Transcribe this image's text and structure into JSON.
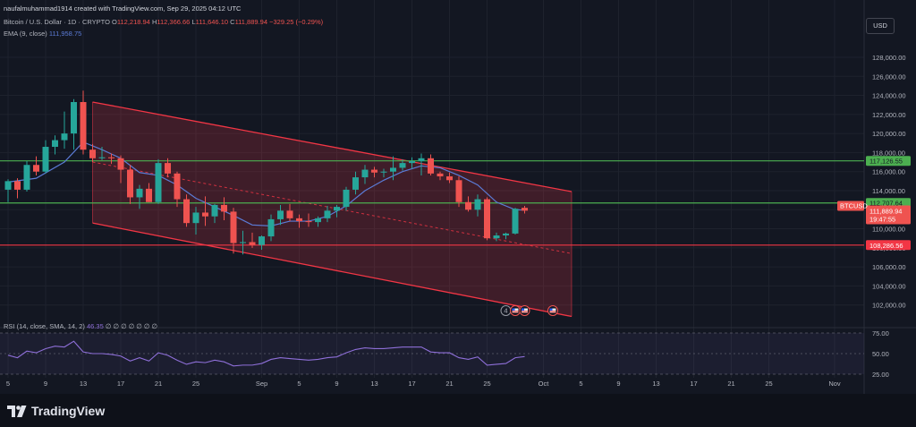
{
  "header": {
    "attribution": "naufalmuhammad1914 created with TradingView.com, Sep 29, 2025 04:12 UTC",
    "symbol": "Bitcoin / U.S. Dollar · 1D · CRYPTO",
    "open_label": "O",
    "open": "112,218.94",
    "high_label": "H",
    "high": "112,366.66",
    "low_label": "L",
    "low": "111,646.10",
    "close_label": "C",
    "close": "111,889.94",
    "change": "−329.25 (−0.29%)",
    "ema_label": "EMA (9, close)",
    "ema_value": "111,958.75"
  },
  "rsi_header": {
    "label": "RSI (14, close, SMA, 14, 2)",
    "value": "46.35",
    "placeholders": "∅ ∅ ∅ ∅ ∅ ∅ ∅"
  },
  "currency": "USD",
  "footer": {
    "brand": "TradingView"
  },
  "colors": {
    "up": "#26a69a",
    "down": "#ef5350",
    "ema": "#5b7bd6",
    "rsi": "#8e6fd8",
    "channel": "#f23645",
    "support_resistance_green": "#4caf50",
    "background": "#131722"
  },
  "chart_data": {
    "type": "candlestick",
    "series_name": "BTCUSD",
    "timeframe": "1D",
    "ylim": [
      100000,
      129500
    ],
    "y_ticks": [
      102000,
      104000,
      106000,
      108000,
      110000,
      112000,
      114000,
      116000,
      118000,
      120000,
      122000,
      124000,
      126000,
      128000
    ],
    "y_tick_labels": [
      "102,000.00",
      "104,000.00",
      "106,000.00",
      "108,000.00",
      "110,000.00",
      "112,000.00",
      "114,000.00",
      "116,000.00",
      "118,000.00",
      "120,000.00",
      "122,000.00",
      "124,000.00",
      "126,000.00",
      "128,000.00"
    ],
    "x_ticks": [
      {
        "day": 0,
        "label": "5"
      },
      {
        "day": 4,
        "label": "9"
      },
      {
        "day": 8,
        "label": "13"
      },
      {
        "day": 12,
        "label": "17"
      },
      {
        "day": 16,
        "label": "21"
      },
      {
        "day": 20,
        "label": "25"
      },
      {
        "day": 27,
        "label": "Sep"
      },
      {
        "day": 31,
        "label": "5"
      },
      {
        "day": 35,
        "label": "9"
      },
      {
        "day": 39,
        "label": "13"
      },
      {
        "day": 43,
        "label": "17"
      },
      {
        "day": 47,
        "label": "21"
      },
      {
        "day": 51,
        "label": "25"
      },
      {
        "day": 57,
        "label": "Oct"
      },
      {
        "day": 61,
        "label": "5"
      },
      {
        "day": 65,
        "label": "9"
      },
      {
        "day": 69,
        "label": "13"
      },
      {
        "day": 73,
        "label": "17"
      },
      {
        "day": 77,
        "label": "21"
      },
      {
        "day": 81,
        "label": "25"
      },
      {
        "day": 88,
        "label": "Nov"
      }
    ],
    "dates_note": "day 0 = Aug 5, 2025",
    "candles": [
      {
        "day": 0,
        "o": 114100,
        "h": 115200,
        "l": 112800,
        "c": 115000
      },
      {
        "day": 1,
        "o": 115000,
        "h": 115300,
        "l": 113200,
        "c": 114100
      },
      {
        "day": 2,
        "o": 114100,
        "h": 117100,
        "l": 113900,
        "c": 116700
      },
      {
        "day": 3,
        "o": 116700,
        "h": 117600,
        "l": 115600,
        "c": 116000
      },
      {
        "day": 4,
        "o": 116000,
        "h": 119300,
        "l": 115800,
        "c": 118600
      },
      {
        "day": 5,
        "o": 118600,
        "h": 119800,
        "l": 117800,
        "c": 119300
      },
      {
        "day": 6,
        "o": 119300,
        "h": 122300,
        "l": 118400,
        "c": 120000
      },
      {
        "day": 7,
        "o": 120000,
        "h": 123600,
        "l": 118300,
        "c": 123300
      },
      {
        "day": 8,
        "o": 123300,
        "h": 124500,
        "l": 117800,
        "c": 118300
      },
      {
        "day": 9,
        "o": 118300,
        "h": 118900,
        "l": 117000,
        "c": 117400
      },
      {
        "day": 10,
        "o": 117400,
        "h": 118600,
        "l": 117200,
        "c": 117500
      },
      {
        "day": 11,
        "o": 117500,
        "h": 117900,
        "l": 116800,
        "c": 117400
      },
      {
        "day": 12,
        "o": 117400,
        "h": 117700,
        "l": 114800,
        "c": 116200
      },
      {
        "day": 13,
        "o": 116200,
        "h": 116700,
        "l": 112600,
        "c": 113300
      },
      {
        "day": 14,
        "o": 113300,
        "h": 114600,
        "l": 112100,
        "c": 114200
      },
      {
        "day": 15,
        "o": 114200,
        "h": 114800,
        "l": 112800,
        "c": 112800
      },
      {
        "day": 16,
        "o": 112800,
        "h": 117300,
        "l": 112600,
        "c": 116900
      },
      {
        "day": 17,
        "o": 116900,
        "h": 117400,
        "l": 115400,
        "c": 115800
      },
      {
        "day": 18,
        "o": 115800,
        "h": 116000,
        "l": 112300,
        "c": 113100
      },
      {
        "day": 19,
        "o": 113100,
        "h": 113600,
        "l": 110200,
        "c": 110600
      },
      {
        "day": 20,
        "o": 110600,
        "h": 112300,
        "l": 109400,
        "c": 111700
      },
      {
        "day": 21,
        "o": 111700,
        "h": 113400,
        "l": 110300,
        "c": 111300
      },
      {
        "day": 22,
        "o": 111300,
        "h": 112600,
        "l": 110600,
        "c": 112500
      },
      {
        "day": 23,
        "o": 112500,
        "h": 113300,
        "l": 110900,
        "c": 111800
      },
      {
        "day": 24,
        "o": 111800,
        "h": 112200,
        "l": 107400,
        "c": 108500
      },
      {
        "day": 25,
        "o": 108500,
        "h": 109800,
        "l": 107300,
        "c": 108600
      },
      {
        "day": 26,
        "o": 108600,
        "h": 109600,
        "l": 108000,
        "c": 108300
      },
      {
        "day": 27,
        "o": 108300,
        "h": 109300,
        "l": 107800,
        "c": 109200
      },
      {
        "day": 28,
        "o": 109200,
        "h": 111500,
        "l": 108700,
        "c": 111000
      },
      {
        "day": 29,
        "o": 111000,
        "h": 112500,
        "l": 110400,
        "c": 111900
      },
      {
        "day": 30,
        "o": 111900,
        "h": 112600,
        "l": 110800,
        "c": 111100
      },
      {
        "day": 31,
        "o": 111100,
        "h": 111500,
        "l": 110100,
        "c": 110800
      },
      {
        "day": 32,
        "o": 110800,
        "h": 111600,
        "l": 110200,
        "c": 110700
      },
      {
        "day": 33,
        "o": 110700,
        "h": 111300,
        "l": 110200,
        "c": 111100
      },
      {
        "day": 34,
        "o": 111100,
        "h": 112400,
        "l": 110700,
        "c": 111900
      },
      {
        "day": 35,
        "o": 111900,
        "h": 112500,
        "l": 111200,
        "c": 112300
      },
      {
        "day": 36,
        "o": 112300,
        "h": 114400,
        "l": 111900,
        "c": 114100
      },
      {
        "day": 37,
        "o": 114100,
        "h": 116000,
        "l": 113600,
        "c": 115400
      },
      {
        "day": 38,
        "o": 115400,
        "h": 116700,
        "l": 114700,
        "c": 116200
      },
      {
        "day": 39,
        "o": 116200,
        "h": 116500,
        "l": 115400,
        "c": 115900
      },
      {
        "day": 40,
        "o": 115900,
        "h": 116300,
        "l": 115400,
        "c": 116000
      },
      {
        "day": 41,
        "o": 116000,
        "h": 117600,
        "l": 115100,
        "c": 116400
      },
      {
        "day": 42,
        "o": 116400,
        "h": 117300,
        "l": 116100,
        "c": 116900
      },
      {
        "day": 43,
        "o": 116900,
        "h": 117500,
        "l": 116300,
        "c": 117100
      },
      {
        "day": 44,
        "o": 117100,
        "h": 117900,
        "l": 115600,
        "c": 117400
      },
      {
        "day": 45,
        "o": 117400,
        "h": 117800,
        "l": 115600,
        "c": 115800
      },
      {
        "day": 46,
        "o": 115800,
        "h": 116000,
        "l": 115100,
        "c": 115500
      },
      {
        "day": 47,
        "o": 115500,
        "h": 115900,
        "l": 114800,
        "c": 115100
      },
      {
        "day": 48,
        "o": 115100,
        "h": 115500,
        "l": 112300,
        "c": 112800
      },
      {
        "day": 49,
        "o": 112800,
        "h": 113400,
        "l": 111800,
        "c": 112000
      },
      {
        "day": 50,
        "o": 112000,
        "h": 113600,
        "l": 111300,
        "c": 113100
      },
      {
        "day": 51,
        "o": 113100,
        "h": 113300,
        "l": 108800,
        "c": 109000
      },
      {
        "day": 52,
        "o": 109000,
        "h": 109600,
        "l": 108700,
        "c": 109300
      },
      {
        "day": 53,
        "o": 109300,
        "h": 109600,
        "l": 108900,
        "c": 109500
      },
      {
        "day": 54,
        "o": 109500,
        "h": 112200,
        "l": 109400,
        "c": 112100
      },
      {
        "day": 55,
        "o": 112200,
        "h": 112400,
        "l": 111600,
        "c": 111900
      }
    ],
    "ema": {
      "name": "EMA (9, close)",
      "days": [
        0,
        3,
        6,
        8,
        10,
        12,
        14,
        16,
        18,
        20,
        22,
        24,
        26,
        28,
        30,
        32,
        34,
        36,
        38,
        40,
        42,
        44,
        46,
        48,
        50,
        52,
        54,
        55
      ],
      "values": [
        114900,
        115300,
        117000,
        119100,
        118300,
        117400,
        115900,
        115600,
        114600,
        113200,
        112300,
        111400,
        110400,
        110300,
        110800,
        110800,
        111300,
        112400,
        114000,
        115100,
        116000,
        116600,
        116400,
        115600,
        114600,
        112800,
        112000,
        111958.75
      ]
    },
    "channel": {
      "upper": [
        {
          "day": 9,
          "price": 123300
        },
        {
          "day": 60,
          "price": 113900
        }
      ],
      "middle": [
        {
          "day": 9,
          "price": 117000
        },
        {
          "day": 60,
          "price": 107400
        }
      ],
      "lower": [
        {
          "day": 9,
          "price": 110600
        },
        {
          "day": 60,
          "price": 100800
        }
      ]
    },
    "horizontal_levels": [
      {
        "price": 117126.55,
        "label": "117,126.55",
        "color": "#4caf50"
      },
      {
        "price": 112707.64,
        "label": "112,707.64",
        "color": "#4caf50"
      },
      {
        "price": 108286.56,
        "label": "108,286.56",
        "color": "#f23645"
      }
    ],
    "last_price": {
      "symbol": "BTCUSD",
      "price": 111889.94,
      "label": "111,889.94",
      "countdown": "19:47:55"
    },
    "rsi": {
      "name": "RSI (14, close, SMA, 14, 2)",
      "ylim": [
        25,
        75
      ],
      "levels": [
        25,
        50,
        75
      ],
      "level_labels": [
        "25.00",
        "50.00",
        "75.00"
      ],
      "days": [
        0,
        1,
        2,
        3,
        4,
        5,
        6,
        7,
        8,
        9,
        10,
        11,
        12,
        13,
        14,
        15,
        16,
        17,
        18,
        19,
        20,
        21,
        22,
        23,
        24,
        25,
        26,
        27,
        28,
        29,
        30,
        31,
        32,
        33,
        34,
        35,
        36,
        37,
        38,
        39,
        40,
        41,
        42,
        43,
        44,
        45,
        46,
        47,
        48,
        49,
        50,
        51,
        52,
        53,
        54,
        55
      ],
      "values": [
        48,
        45,
        53,
        51,
        56,
        59,
        58,
        65,
        52,
        50,
        50,
        49,
        47,
        41,
        45,
        41,
        51,
        48,
        42,
        37,
        40,
        39,
        42,
        40,
        35,
        36,
        36,
        38,
        43,
        45,
        44,
        43,
        42,
        43,
        45,
        46,
        51,
        55,
        57,
        56,
        56,
        57,
        58,
        58,
        58,
        52,
        51,
        51,
        45,
        43,
        46,
        36,
        37,
        38,
        45,
        46.35
      ]
    },
    "event_markers": [
      {
        "day": 53,
        "symbol": "4"
      },
      {
        "day": 54,
        "symbol": "flag"
      },
      {
        "day": 55,
        "symbol": "flag"
      },
      {
        "day": 58,
        "symbol": "flag"
      }
    ]
  }
}
